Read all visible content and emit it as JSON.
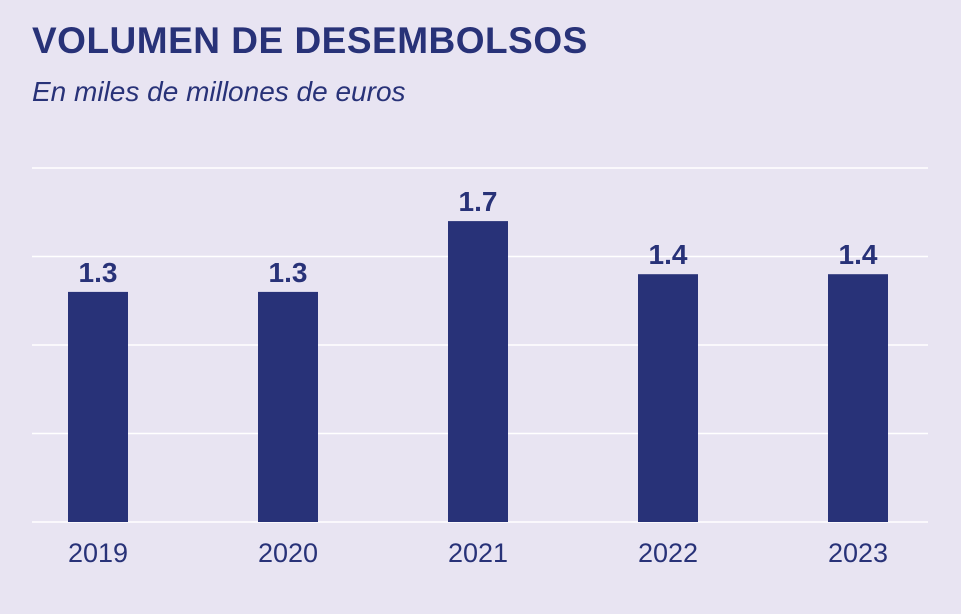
{
  "chart_data": {
    "type": "bar",
    "title": "VOLUMEN DE DESEMBOLSOS",
    "subtitle": "En miles de millones de euros",
    "categories": [
      "2019",
      "2020",
      "2021",
      "2022",
      "2023"
    ],
    "values": [
      1.3,
      1.3,
      1.7,
      1.4,
      1.4
    ],
    "data_labels": [
      "1.3",
      "1.3",
      "1.7",
      "1.4",
      "1.4"
    ],
    "xlabel": "",
    "ylabel": "",
    "ylim": [
      0,
      2
    ],
    "yticks": [
      0,
      0.5,
      1,
      1.5,
      2
    ],
    "grid": true,
    "colors": {
      "bar": "#283278",
      "background": "#e8e4f2",
      "grid": "#ffffff"
    }
  }
}
